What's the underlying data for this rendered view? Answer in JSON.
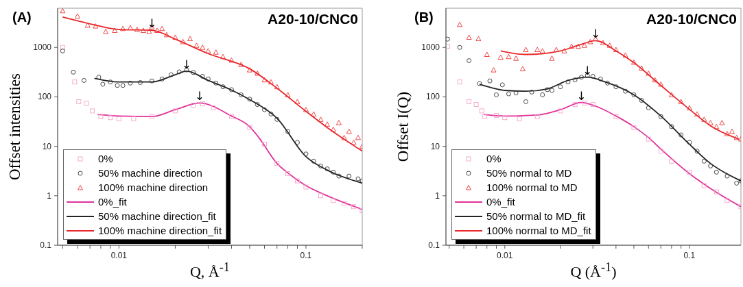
{
  "chart_data": [
    {
      "type": "scatter",
      "ylabel": "Offset intensities",
      "xlabel": "Q, Å$^{-1}$",
      "annotations": [
        "(A)",
        "A20-10/CNC0",
        {
          "text": "↓",
          "x": 0.015,
          "y": 2220
        },
        {
          "text": "↓",
          "x": 0.023,
          "y": 330
        },
        {
          "text": "↓",
          "x": 0.027,
          "y": 75
        }
      ],
      "log": "xy",
      "legend": "bottom left",
      "xlim": [
        0.0047,
        0.2
      ],
      "ylim": [
        0.1,
        6200
      ],
      "xticks": [
        {
          "value": 0.005,
          "label": null
        },
        {
          "value": 0.006,
          "label": null
        },
        {
          "value": 0.007,
          "label": null
        },
        {
          "value": 0.008,
          "label": null
        },
        {
          "value": 0.009,
          "label": null
        },
        {
          "value": 0.01,
          "label": "0.01"
        },
        {
          "value": 0.02,
          "label": null
        },
        {
          "value": 0.03,
          "label": null
        },
        {
          "value": 0.04,
          "label": null
        },
        {
          "value": 0.05,
          "label": null
        },
        {
          "value": 0.06,
          "label": null
        },
        {
          "value": 0.07,
          "label": null
        },
        {
          "value": 0.08,
          "label": null
        },
        {
          "value": 0.09,
          "label": null
        },
        {
          "value": 0.1,
          "label": "0.1"
        },
        {
          "value": 0.2,
          "label": null
        }
      ],
      "yticks": [
        0.1,
        1,
        10,
        100,
        1000
      ],
      "series": [
        {
          "name": "0%",
          "type": "scatter",
          "marker": "square",
          "color": "#f4a3c8",
          "x": [
            0.005,
            0.0058,
            0.0061,
            0.0067,
            0.0072,
            0.008,
            0.009,
            0.01,
            0.012,
            0.015,
            0.02,
            0.025,
            0.028,
            0.032,
            0.04,
            0.05,
            0.06,
            0.07,
            0.08,
            0.09,
            0.1,
            0.12,
            0.14,
            0.16,
            0.18,
            0.2
          ],
          "values": [
            1000,
            200,
            80,
            74,
            52,
            40,
            38,
            36,
            36,
            40,
            52,
            68,
            72,
            60,
            40,
            24,
            11,
            4.5,
            2.8,
            2,
            1.5,
            1,
            0.8,
            0.7,
            0.6,
            0.5
          ]
        },
        {
          "name": "50% machine direction",
          "type": "scatter",
          "marker": "circle",
          "color": "#333333",
          "x": [
            0.005,
            0.0057,
            0.0065,
            0.0078,
            0.0082,
            0.009,
            0.0098,
            0.0105,
            0.0115,
            0.013,
            0.015,
            0.017,
            0.019,
            0.021,
            0.023,
            0.025,
            0.028,
            0.03,
            0.033,
            0.036,
            0.04,
            0.045,
            0.05,
            0.055,
            0.06,
            0.065,
            0.07,
            0.08,
            0.09,
            0.1,
            0.11,
            0.12,
            0.13,
            0.14,
            0.15,
            0.17,
            0.19,
            0.2
          ],
          "values": [
            850,
            316,
            215,
            250,
            180,
            200,
            170,
            170,
            190,
            195,
            210,
            230,
            280,
            320,
            350,
            310,
            260,
            230,
            190,
            160,
            140,
            110,
            90,
            70,
            55,
            45,
            35,
            20,
            12,
            7,
            5,
            4,
            3.5,
            3,
            2.5,
            2.5,
            2.2,
            2
          ]
        },
        {
          "name": "100% machine direction",
          "type": "scatter",
          "marker": "triangle",
          "color": "#ee3333",
          "x": [
            0.005,
            0.006,
            0.0068,
            0.0075,
            0.0085,
            0.0095,
            0.0105,
            0.0115,
            0.0125,
            0.0135,
            0.0145,
            0.015,
            0.016,
            0.017,
            0.018,
            0.02,
            0.022,
            0.024,
            0.026,
            0.028,
            0.03,
            0.033,
            0.036,
            0.04,
            0.045,
            0.05,
            0.055,
            0.06,
            0.065,
            0.07,
            0.08,
            0.09,
            0.1,
            0.11,
            0.12,
            0.13,
            0.14,
            0.15,
            0.16,
            0.17,
            0.18,
            0.19,
            0.2
          ],
          "values": [
            5500,
            4300,
            2800,
            2700,
            2100,
            2200,
            2400,
            2500,
            2300,
            2200,
            2100,
            2600,
            2200,
            2400,
            1800,
            1600,
            1300,
            1500,
            1100,
            1000,
            850,
            800,
            650,
            550,
            450,
            350,
            300,
            220,
            200,
            160,
            110,
            80,
            55,
            45,
            35,
            28,
            22,
            30,
            15,
            20,
            12,
            15,
            10
          ]
        },
        {
          "name": "0%_fit",
          "type": "line",
          "marker": "none",
          "color": "#e0309a",
          "x": [
            0.0077,
            0.01,
            0.015,
            0.02,
            0.027,
            0.04,
            0.05,
            0.056,
            0.07,
            0.08,
            0.1,
            0.13,
            0.2
          ],
          "values": [
            44,
            41,
            40,
            55,
            75,
            41,
            25,
            15,
            4.5,
            2.9,
            1.6,
            1,
            0.53
          ]
        },
        {
          "name": "50% machine direction_fit",
          "type": "line",
          "marker": "none",
          "color": "#222222",
          "x": [
            0.0074,
            0.01,
            0.015,
            0.02,
            0.023,
            0.03,
            0.04,
            0.05,
            0.07,
            0.1,
            0.13,
            0.2
          ],
          "values": [
            237,
            200,
            200,
            280,
            330,
            215,
            137,
            88,
            37,
            6.2,
            3.3,
            1.8
          ]
        },
        {
          "name": "100% machine direction_fit",
          "type": "line",
          "marker": "none",
          "color": "#e8262b",
          "x": [
            0.005,
            0.007,
            0.01,
            0.015,
            0.02,
            0.03,
            0.05,
            0.07,
            0.1,
            0.13,
            0.2
          ],
          "values": [
            4100,
            3000,
            2300,
            2220,
            1470,
            750,
            370,
            150,
            51,
            24,
            8
          ]
        }
      ]
    },
    {
      "type": "scatter",
      "ylabel": "Offset I(Q)",
      "xlabel": "Q (Å$^{-1}$)",
      "annotations": [
        "(B)",
        "A20-10/CNC0",
        {
          "text": "↓",
          "x": 0.031,
          "y": 1370
        },
        {
          "text": "↓",
          "x": 0.028,
          "y": 250
        },
        {
          "text": "↓",
          "x": 0.026,
          "y": 77
        }
      ],
      "log": "xy",
      "legend": "bottom left",
      "xlim": [
        0.0048,
        0.19
      ],
      "ylim": [
        0.1,
        6200
      ],
      "xticks": [
        {
          "value": 0.005,
          "label": null
        },
        {
          "value": 0.006,
          "label": null
        },
        {
          "value": 0.007,
          "label": null
        },
        {
          "value": 0.008,
          "label": null
        },
        {
          "value": 0.009,
          "label": null
        },
        {
          "value": 0.01,
          "label": "0.01"
        },
        {
          "value": 0.02,
          "label": null
        },
        {
          "value": 0.03,
          "label": null
        },
        {
          "value": 0.04,
          "label": null
        },
        {
          "value": 0.05,
          "label": null
        },
        {
          "value": 0.06,
          "label": null
        },
        {
          "value": 0.07,
          "label": null
        },
        {
          "value": 0.08,
          "label": null
        },
        {
          "value": 0.09,
          "label": null
        },
        {
          "value": 0.1,
          "label": "0.1"
        }
      ],
      "yticks": [
        0.1,
        1,
        10,
        100,
        1000
      ],
      "series": [
        {
          "name": "0%",
          "type": "scatter",
          "marker": "square",
          "color": "#f4a3c8",
          "x": [
            0.0049,
            0.0057,
            0.0064,
            0.007,
            0.0075,
            0.0078,
            0.009,
            0.01,
            0.012,
            0.015,
            0.02,
            0.024,
            0.027,
            0.03,
            0.04,
            0.05,
            0.06,
            0.07,
            0.08,
            0.1,
            0.12,
            0.14,
            0.16,
            0.19
          ],
          "values": [
            1050,
            200,
            80,
            70,
            52,
            40,
            42,
            38,
            36,
            40,
            52,
            70,
            75,
            70,
            40,
            24,
            14,
            8,
            5,
            3,
            1.6,
            1.2,
            0.8,
            0.6
          ]
        },
        {
          "name": "50% normal to MD",
          "type": "scatter",
          "marker": "circle",
          "color": "#333333",
          "x": [
            0.0049,
            0.0057,
            0.0064,
            0.0073,
            0.0083,
            0.009,
            0.0097,
            0.0105,
            0.0115,
            0.013,
            0.014,
            0.016,
            0.017,
            0.018,
            0.02,
            0.022,
            0.024,
            0.026,
            0.028,
            0.03,
            0.033,
            0.036,
            0.04,
            0.045,
            0.05,
            0.055,
            0.06,
            0.07,
            0.08,
            0.09,
            0.1,
            0.11,
            0.12,
            0.13,
            0.14,
            0.16,
            0.18,
            0.19
          ],
          "values": [
            1470,
            1000,
            540,
            185,
            210,
            110,
            175,
            115,
            120,
            80,
            125,
            110,
            140,
            135,
            160,
            200,
            220,
            250,
            270,
            260,
            230,
            190,
            160,
            130,
            110,
            85,
            60,
            40,
            25,
            17,
            12,
            8,
            5,
            4,
            3,
            2.5,
            1.8,
            2
          ]
        },
        {
          "name": "100% normal to MD",
          "type": "scatter",
          "marker": "triangle",
          "color": "#ee3333",
          "x": [
            0.0057,
            0.0064,
            0.0072,
            0.008,
            0.0087,
            0.0095,
            0.0105,
            0.0115,
            0.0125,
            0.013,
            0.015,
            0.016,
            0.018,
            0.019,
            0.021,
            0.023,
            0.025,
            0.027,
            0.029,
            0.031,
            0.034,
            0.037,
            0.04,
            0.045,
            0.05,
            0.055,
            0.06,
            0.065,
            0.07,
            0.08,
            0.09,
            0.1,
            0.11,
            0.12,
            0.13,
            0.14,
            0.15,
            0.16,
            0.17,
            0.18,
            0.19
          ],
          "values": [
            2900,
            1600,
            1500,
            720,
            350,
            630,
            650,
            600,
            370,
            900,
            900,
            850,
            600,
            900,
            850,
            1050,
            1050,
            1100,
            1300,
            1500,
            1250,
            1100,
            900,
            700,
            500,
            380,
            300,
            220,
            180,
            110,
            80,
            60,
            45,
            35,
            30,
            25,
            30,
            18,
            20,
            15,
            14
          ]
        },
        {
          "name": "0%_fit",
          "type": "line",
          "marker": "none",
          "color": "#e0309a",
          "x": [
            0.0077,
            0.01,
            0.015,
            0.02,
            0.026,
            0.03,
            0.04,
            0.05,
            0.06,
            0.07,
            0.1,
            0.13,
            0.19
          ],
          "values": [
            44,
            41,
            43,
            55,
            77,
            68,
            41,
            25,
            15,
            8.8,
            2.8,
            1.4,
            0.6
          ]
        },
        {
          "name": "50% normal to MD_fit",
          "type": "line",
          "marker": "none",
          "color": "#222222",
          "x": [
            0.0073,
            0.01,
            0.013,
            0.017,
            0.022,
            0.028,
            0.035,
            0.05,
            0.07,
            0.1,
            0.13,
            0.19
          ],
          "values": [
            180,
            135,
            130,
            145,
            215,
            250,
            200,
            110,
            41,
            11,
            4.5,
            2
          ]
        },
        {
          "name": "100% normal to MD_fit",
          "type": "line",
          "marker": "none",
          "color": "#e8262b",
          "x": [
            0.0095,
            0.013,
            0.02,
            0.025,
            0.031,
            0.04,
            0.05,
            0.07,
            0.1,
            0.13,
            0.185
          ],
          "values": [
            850,
            720,
            850,
            1100,
            1370,
            850,
            490,
            170,
            56,
            26,
            14
          ]
        }
      ]
    }
  ]
}
